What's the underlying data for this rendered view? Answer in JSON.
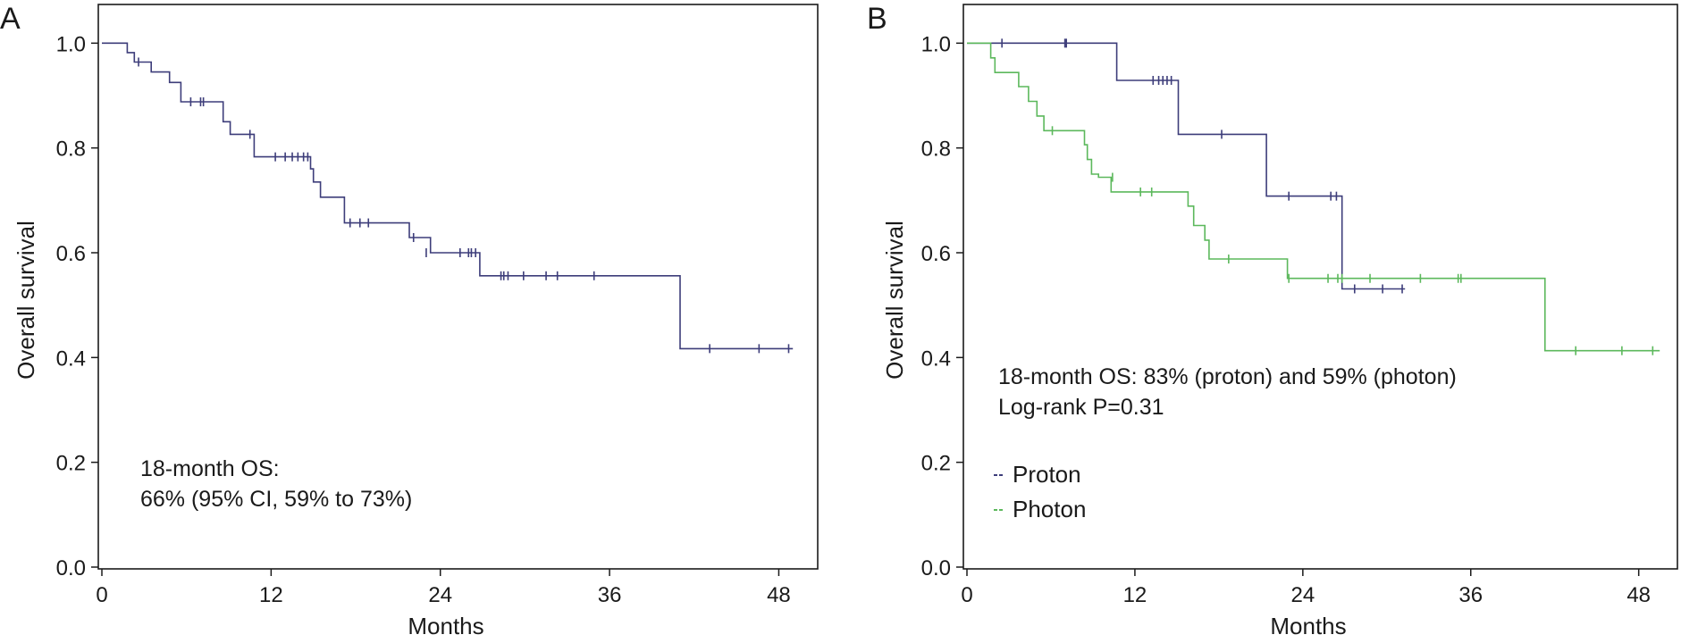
{
  "figure": {
    "panels": [
      {
        "letter": "A",
        "xlabel": "Months",
        "ylabel": "Overall survival",
        "annotation_lines": [
          "18-month OS:",
          "66% (95% CI, 59% to 73%)"
        ],
        "legend": []
      },
      {
        "letter": "B",
        "xlabel": "Months",
        "ylabel": "Overall survival",
        "annotation_lines": [
          "18-month OS: 83% (proton) and 59% (photon)",
          "Log-rank P=0.31"
        ],
        "legend": [
          {
            "label": "Proton",
            "color": "#3d3d7a"
          },
          {
            "label": "Photon",
            "color": "#5cb85c"
          }
        ]
      }
    ]
  },
  "chart_data": [
    {
      "type": "line",
      "step": "post",
      "title": "",
      "xlabel": "Months",
      "ylabel": "Overall survival",
      "xlim": [
        0,
        50
      ],
      "ylim": [
        0,
        1.05
      ],
      "xticks": [
        0,
        12,
        24,
        36,
        48
      ],
      "yticks": [
        0.0,
        0.2,
        0.4,
        0.6,
        0.8,
        1.0
      ],
      "grid": false,
      "legend_position": "none",
      "series": [
        {
          "color": "#3d3d7a",
          "x": [
            0,
            1.8,
            2.3,
            3.5,
            4.8,
            5.6,
            8.6,
            9.1,
            10.8,
            14.8,
            15.0,
            15.5,
            17.2,
            19.8,
            21.8,
            23.3,
            26.8,
            41.0,
            49.0
          ],
          "y": [
            1.0,
            0.982,
            0.964,
            0.945,
            0.925,
            0.888,
            0.85,
            0.826,
            0.783,
            0.76,
            0.735,
            0.706,
            0.657,
            0.657,
            0.629,
            0.6,
            0.556,
            0.417,
            0.417
          ],
          "censor_x": [
            2.6,
            6.3,
            7.0,
            7.2,
            10.5,
            12.3,
            13.0,
            13.5,
            13.9,
            14.3,
            14.6,
            17.6,
            18.3,
            18.9,
            22.1,
            23.0,
            25.4,
            26.0,
            26.2,
            26.5,
            28.3,
            28.5,
            28.8,
            29.9,
            31.5,
            32.3,
            34.9,
            43.1,
            46.6,
            48.7
          ],
          "censor_y": [
            0.964,
            0.888,
            0.888,
            0.888,
            0.826,
            0.783,
            0.783,
            0.783,
            0.783,
            0.783,
            0.783,
            0.657,
            0.657,
            0.657,
            0.629,
            0.6,
            0.6,
            0.6,
            0.6,
            0.6,
            0.556,
            0.556,
            0.556,
            0.556,
            0.556,
            0.556,
            0.556,
            0.417,
            0.417,
            0.417
          ]
        }
      ]
    },
    {
      "type": "line",
      "step": "post",
      "title": "",
      "xlabel": "Months",
      "ylabel": "Overall survival",
      "xlim": [
        0,
        50
      ],
      "ylim": [
        0,
        1.05
      ],
      "xticks": [
        0,
        12,
        24,
        36,
        48
      ],
      "yticks": [
        0.0,
        0.2,
        0.4,
        0.6,
        0.8,
        1.0
      ],
      "grid": false,
      "legend_position": "bottom-left",
      "series": [
        {
          "name": "Proton",
          "color": "#3d3d7a",
          "x": [
            0,
            10.7,
            15.1,
            21.4,
            26.8,
            31.3
          ],
          "y": [
            1.0,
            0.929,
            0.826,
            0.708,
            0.531,
            0.531
          ],
          "censor_x": [
            2.5,
            7.0,
            7.1,
            13.3,
            13.7,
            14.0,
            14.3,
            14.6,
            18.2,
            23.0,
            26.0,
            26.4,
            27.7,
            29.7,
            31.1
          ],
          "censor_y": [
            1.0,
            1.0,
            1.0,
            0.929,
            0.929,
            0.929,
            0.929,
            0.929,
            0.826,
            0.708,
            0.708,
            0.708,
            0.531,
            0.531,
            0.531
          ]
        },
        {
          "name": "Photon",
          "color": "#5cb85c",
          "x": [
            0,
            1.7,
            2.0,
            3.7,
            4.4,
            5.0,
            5.5,
            8.4,
            8.6,
            8.9,
            9.4,
            10.3,
            15.8,
            16.2,
            17.0,
            17.3,
            22.9,
            41.3,
            49.5
          ],
          "y": [
            1.0,
            0.972,
            0.944,
            0.917,
            0.889,
            0.861,
            0.833,
            0.806,
            0.778,
            0.75,
            0.744,
            0.716,
            0.689,
            0.652,
            0.624,
            0.588,
            0.551,
            0.413,
            0.413
          ],
          "censor_x": [
            6.1,
            10.4,
            12.4,
            13.2,
            18.7,
            23.0,
            25.8,
            26.5,
            26.8,
            28.8,
            32.4,
            35.1,
            35.3,
            43.5,
            46.8,
            49.0
          ],
          "censor_y": [
            0.833,
            0.744,
            0.716,
            0.716,
            0.588,
            0.551,
            0.551,
            0.551,
            0.551,
            0.551,
            0.551,
            0.551,
            0.551,
            0.413,
            0.413,
            0.413
          ]
        }
      ]
    }
  ]
}
